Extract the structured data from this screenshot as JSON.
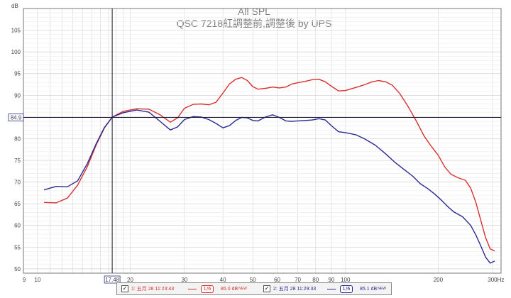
{
  "chart_data": {
    "type": "line",
    "title": "All SPL",
    "subtitle": "QSC 7218紅調整前,調整後 by UPS",
    "ylabel": "dB",
    "xlabel": "",
    "x_unit": "Hz",
    "x_scale": "log",
    "xlim": [
      9,
      320
    ],
    "ylim": [
      49,
      110
    ],
    "grid": true,
    "x_ticks": [
      {
        "v": 9,
        "label": "9"
      },
      {
        "v": 10,
        "label": "10"
      },
      {
        "v": 20,
        "label": "20"
      },
      {
        "v": 30,
        "label": "30"
      },
      {
        "v": 40,
        "label": "40"
      },
      {
        "v": 50,
        "label": "50"
      },
      {
        "v": 60,
        "label": "60"
      },
      {
        "v": 70,
        "label": "70"
      },
      {
        "v": 80,
        "label": "80"
      },
      {
        "v": 90,
        "label": "90"
      },
      {
        "v": 100,
        "label": "100"
      },
      {
        "v": 200,
        "label": "200"
      },
      {
        "v": 300,
        "label": "300Hz"
      }
    ],
    "y_ticks": [
      50,
      55,
      60,
      65,
      70,
      75,
      80,
      85,
      90,
      95,
      100,
      105
    ],
    "cursor": {
      "x": 17.48,
      "x_label": "17.48",
      "y": 84.9,
      "y_label": "84.9"
    },
    "series": [
      {
        "name": "1: 五月 28 11:23:43",
        "color": "#d83030",
        "smoothing": "1/6",
        "level": "85.0 dB",
        "tag": "NEW",
        "points": [
          [
            10.5,
            65.3
          ],
          [
            11.5,
            65.2
          ],
          [
            12.5,
            66.3
          ],
          [
            13.5,
            69.3
          ],
          [
            14.5,
            73.5
          ],
          [
            15.5,
            78.5
          ],
          [
            16.5,
            82.5
          ],
          [
            17.5,
            85.0
          ],
          [
            19,
            86.3
          ],
          [
            21,
            86.9
          ],
          [
            23,
            86.8
          ],
          [
            25,
            85.5
          ],
          [
            27,
            83.8
          ],
          [
            28.5,
            84.8
          ],
          [
            30,
            87.0
          ],
          [
            32,
            87.9
          ],
          [
            34,
            88.0
          ],
          [
            36,
            87.8
          ],
          [
            38,
            88.4
          ],
          [
            40,
            90.5
          ],
          [
            42,
            92.6
          ],
          [
            44,
            93.7
          ],
          [
            46,
            94.1
          ],
          [
            48,
            93.4
          ],
          [
            50,
            92.0
          ],
          [
            52,
            91.4
          ],
          [
            55,
            91.6
          ],
          [
            58,
            91.9
          ],
          [
            61,
            91.7
          ],
          [
            64,
            91.9
          ],
          [
            67,
            92.6
          ],
          [
            70,
            92.9
          ],
          [
            74,
            93.2
          ],
          [
            78,
            93.6
          ],
          [
            82,
            93.7
          ],
          [
            86,
            93.1
          ],
          [
            90,
            92.1
          ],
          [
            95,
            91.0
          ],
          [
            100,
            91.1
          ],
          [
            108,
            91.8
          ],
          [
            115,
            92.4
          ],
          [
            122,
            93.1
          ],
          [
            128,
            93.4
          ],
          [
            135,
            93.1
          ],
          [
            142,
            92.3
          ],
          [
            150,
            90.4
          ],
          [
            160,
            87.3
          ],
          [
            170,
            84.0
          ],
          [
            180,
            80.6
          ],
          [
            190,
            78.2
          ],
          [
            200,
            76.2
          ],
          [
            210,
            73.5
          ],
          [
            220,
            71.8
          ],
          [
            232,
            71.0
          ],
          [
            245,
            70.4
          ],
          [
            255,
            68.6
          ],
          [
            265,
            65.3
          ],
          [
            275,
            61.2
          ],
          [
            285,
            57.2
          ],
          [
            295,
            54.6
          ],
          [
            305,
            54.1
          ]
        ]
      },
      {
        "name": "2: 五月 28 11:29:33",
        "color": "#2a2a90",
        "smoothing": "1/6",
        "level": "85.1 dB",
        "tag": "NEW",
        "points": [
          [
            10.5,
            68.2
          ],
          [
            11.5,
            69.0
          ],
          [
            12.5,
            68.9
          ],
          [
            13.5,
            70.3
          ],
          [
            14.5,
            74.2
          ],
          [
            15.5,
            78.8
          ],
          [
            16.5,
            82.6
          ],
          [
            17.5,
            85.0
          ],
          [
            19,
            86.0
          ],
          [
            21,
            86.6
          ],
          [
            23,
            86.1
          ],
          [
            25,
            84.0
          ],
          [
            27,
            82.0
          ],
          [
            28.5,
            82.7
          ],
          [
            30,
            84.4
          ],
          [
            32,
            85.1
          ],
          [
            34,
            85.0
          ],
          [
            36,
            84.4
          ],
          [
            38,
            83.5
          ],
          [
            40,
            82.5
          ],
          [
            42,
            83.0
          ],
          [
            44,
            84.2
          ],
          [
            46,
            84.9
          ],
          [
            48,
            84.8
          ],
          [
            50,
            84.2
          ],
          [
            52,
            84.1
          ],
          [
            55,
            85.0
          ],
          [
            58,
            85.5
          ],
          [
            61,
            84.9
          ],
          [
            64,
            84.1
          ],
          [
            67,
            84.0
          ],
          [
            70,
            84.1
          ],
          [
            74,
            84.2
          ],
          [
            78,
            84.3
          ],
          [
            82,
            84.6
          ],
          [
            86,
            84.3
          ],
          [
            90,
            83.0
          ],
          [
            95,
            81.6
          ],
          [
            100,
            81.4
          ],
          [
            108,
            80.9
          ],
          [
            115,
            80.0
          ],
          [
            125,
            78.5
          ],
          [
            135,
            76.5
          ],
          [
            145,
            74.5
          ],
          [
            155,
            72.9
          ],
          [
            165,
            71.4
          ],
          [
            175,
            69.6
          ],
          [
            185,
            68.5
          ],
          [
            195,
            67.2
          ],
          [
            205,
            65.8
          ],
          [
            215,
            64.3
          ],
          [
            225,
            63.1
          ],
          [
            240,
            62.0
          ],
          [
            255,
            60.0
          ],
          [
            265,
            57.8
          ],
          [
            275,
            55.3
          ],
          [
            285,
            52.7
          ],
          [
            295,
            51.3
          ],
          [
            305,
            51.8
          ]
        ]
      }
    ],
    "legend_position": "bottom"
  }
}
